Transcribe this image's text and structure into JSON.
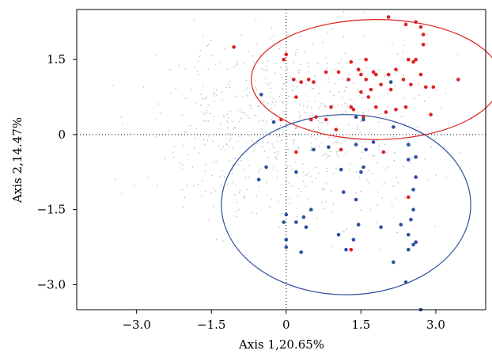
{
  "chart_data": {
    "type": "scatter",
    "title": "",
    "xlabel": "Axis 1,20.65%",
    "ylabel": "Axis 2,14.47%",
    "xlim": [
      -4.2,
      4.0
    ],
    "ylim": [
      -3.5,
      2.5
    ],
    "x_ticks": [
      {
        "value": -3.0,
        "label": "−3.0"
      },
      {
        "value": -1.5,
        "label": "−1.5"
      },
      {
        "value": 0,
        "label": "0"
      },
      {
        "value": 1.5,
        "label": "1.5"
      },
      {
        "value": 3.0,
        "label": "3.0"
      }
    ],
    "y_ticks": [
      {
        "value": 1.5,
        "label": "1.5"
      },
      {
        "value": 0,
        "label": "0"
      },
      {
        "value": -1.5,
        "label": "−1.5"
      },
      {
        "value": -3.0,
        "label": "−3.0"
      }
    ],
    "grid": false,
    "reference_lines": {
      "x": 0,
      "y": 0,
      "style": "dotted"
    },
    "colors": {
      "group_red": "#e02020",
      "group_blue": "#2e4fa0",
      "background": "#b0b0b0",
      "frame": "#000000"
    },
    "ellipses": [
      {
        "group": "red",
        "cx": 1.8,
        "cy": 1.1,
        "rx": 2.5,
        "ry": 1.2
      },
      {
        "group": "blue",
        "cx": 1.2,
        "cy": -1.4,
        "rx": 2.5,
        "ry": 1.8
      }
    ],
    "series": [
      {
        "color": "#e02020",
        "points": [
          [
            -1.05,
            1.75
          ],
          [
            -0.05,
            1.5
          ],
          [
            0.0,
            1.6
          ],
          [
            0.15,
            1.1
          ],
          [
            0.3,
            1.05
          ],
          [
            0.45,
            1.1
          ],
          [
            0.55,
            1.05
          ],
          [
            0.8,
            1.25
          ],
          [
            1.05,
            1.25
          ],
          [
            1.25,
            1.1
          ],
          [
            1.3,
            1.45
          ],
          [
            1.45,
            1.3
          ],
          [
            1.5,
            1.2
          ],
          [
            1.6,
            1.5
          ],
          [
            1.6,
            1.1
          ],
          [
            1.7,
            0.9
          ],
          [
            1.75,
            1.25
          ],
          [
            1.8,
            1.2
          ],
          [
            1.9,
            1.0
          ],
          [
            2.05,
            1.2
          ],
          [
            2.1,
            0.9
          ],
          [
            2.2,
            1.3
          ],
          [
            2.35,
            1.1
          ],
          [
            2.45,
            1.5
          ],
          [
            2.5,
            1.0
          ],
          [
            2.6,
            1.5
          ],
          [
            2.7,
            1.2
          ],
          [
            2.8,
            0.95
          ],
          [
            2.05,
            2.35
          ],
          [
            2.4,
            2.2
          ],
          [
            2.6,
            2.25
          ],
          [
            2.7,
            2.15
          ],
          [
            2.75,
            2.0
          ],
          [
            2.75,
            1.8
          ],
          [
            2.55,
            1.45
          ],
          [
            2.95,
            0.95
          ],
          [
            3.45,
            1.1
          ],
          [
            2.9,
            0.4
          ],
          [
            2.4,
            0.55
          ],
          [
            2.2,
            0.5
          ],
          [
            2.0,
            0.45
          ],
          [
            1.8,
            0.55
          ],
          [
            1.65,
            0.75
          ],
          [
            1.5,
            0.85
          ],
          [
            1.3,
            0.55
          ],
          [
            0.9,
            0.55
          ],
          [
            0.8,
            0.3
          ],
          [
            0.6,
            0.35
          ],
          [
            1.0,
            0.1
          ],
          [
            1.1,
            -0.3
          ],
          [
            1.35,
            0.5
          ],
          [
            0.5,
            0.3
          ],
          [
            0.2,
            0.75
          ],
          [
            -0.1,
            0.3
          ],
          [
            0.2,
            -0.35
          ],
          [
            1.55,
            0.35
          ],
          [
            1.95,
            -0.35
          ],
          [
            2.45,
            -1.25
          ],
          [
            1.3,
            -2.3
          ]
        ]
      },
      {
        "color": "#2e4fa0",
        "points": [
          [
            1.4,
            0.35
          ],
          [
            1.55,
            0.3
          ],
          [
            2.1,
            1.05
          ],
          [
            -0.5,
            0.8
          ],
          [
            -0.25,
            0.25
          ],
          [
            2.15,
            0.15
          ],
          [
            0.55,
            -0.3
          ],
          [
            0.85,
            -0.25
          ],
          [
            1.4,
            -0.2
          ],
          [
            1.6,
            -0.3
          ],
          [
            1.75,
            -0.15
          ],
          [
            2.45,
            -0.2
          ],
          [
            2.45,
            -0.5
          ],
          [
            2.6,
            -0.45
          ],
          [
            1.1,
            -0.7
          ],
          [
            1.5,
            -0.75
          ],
          [
            1.55,
            -0.65
          ],
          [
            0.2,
            -0.75
          ],
          [
            -0.4,
            -0.65
          ],
          [
            -0.55,
            -0.9
          ],
          [
            1.15,
            -1.15
          ],
          [
            1.4,
            -1.3
          ],
          [
            2.55,
            -1.1
          ],
          [
            2.6,
            -0.85
          ],
          [
            2.55,
            -1.5
          ],
          [
            0.5,
            -1.5
          ],
          [
            0.35,
            -1.65
          ],
          [
            0.0,
            -1.6
          ],
          [
            -0.05,
            -1.75
          ],
          [
            0.2,
            -1.75
          ],
          [
            0.4,
            -1.85
          ],
          [
            1.45,
            -1.8
          ],
          [
            1.9,
            -1.85
          ],
          [
            2.3,
            -1.8
          ],
          [
            2.5,
            -1.7
          ],
          [
            2.45,
            -2.0
          ],
          [
            1.05,
            -2.0
          ],
          [
            1.35,
            -2.1
          ],
          [
            0.0,
            -2.1
          ],
          [
            0.0,
            -2.25
          ],
          [
            0.3,
            -2.35
          ],
          [
            1.2,
            -2.3
          ],
          [
            2.55,
            -2.2
          ],
          [
            2.45,
            -2.3
          ],
          [
            2.6,
            -2.15
          ],
          [
            2.15,
            -2.55
          ],
          [
            2.4,
            -2.95
          ],
          [
            2.7,
            -3.5
          ]
        ]
      }
    ]
  }
}
